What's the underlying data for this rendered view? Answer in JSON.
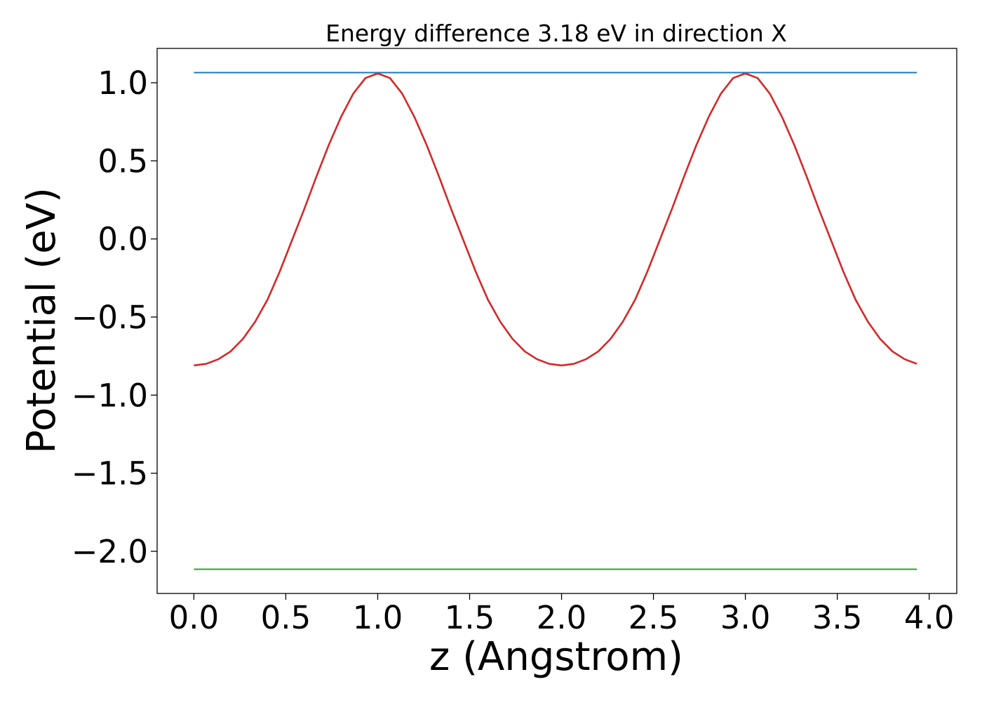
{
  "chart_data": {
    "type": "line",
    "title": "Energy difference 3.18 eV in direction X",
    "xlabel": "z (Angstrom)",
    "ylabel": "Potential (eV)",
    "xlim": [
      -0.2,
      4.15
    ],
    "ylim": [
      -2.27,
      1.22
    ],
    "x_ticks": [
      0.0,
      0.5,
      1.0,
      1.5,
      2.0,
      2.5,
      3.0,
      3.5,
      4.0
    ],
    "x_tick_labels": [
      "0.0",
      "0.5",
      "1.0",
      "1.5",
      "2.0",
      "2.5",
      "3.0",
      "3.5",
      "4.0"
    ],
    "y_ticks": [
      1.0,
      0.5,
      0.0,
      -0.5,
      -1.0,
      -1.5,
      -2.0
    ],
    "y_tick_labels": [
      "1.0",
      "0.5",
      "0.0",
      "−0.5",
      "−1.0",
      "−1.5",
      "−2.0"
    ],
    "grid": false,
    "series": [
      {
        "color": "#d62728",
        "x": [
          0.0,
          0.0667,
          0.1333,
          0.2,
          0.2667,
          0.3333,
          0.4,
          0.4667,
          0.5333,
          0.6,
          0.6667,
          0.7333,
          0.8,
          0.8667,
          0.9333,
          1.0,
          1.0667,
          1.1333,
          1.2,
          1.2667,
          1.3333,
          1.4,
          1.4667,
          1.5333,
          1.6,
          1.6667,
          1.7333,
          1.8,
          1.8667,
          1.9333,
          2.0,
          2.0667,
          2.1333,
          2.2,
          2.2667,
          2.3333,
          2.4,
          2.4667,
          2.5333,
          2.6,
          2.6667,
          2.7333,
          2.8,
          2.8667,
          2.9333,
          3.0,
          3.0667,
          3.1333,
          3.2,
          3.2667,
          3.3333,
          3.4,
          3.4667,
          3.5333,
          3.6,
          3.6667,
          3.7333,
          3.8,
          3.8667,
          3.9333
        ],
        "y": [
          -0.81,
          -0.8,
          -0.77,
          -0.72,
          -0.64,
          -0.53,
          -0.39,
          -0.21,
          -0.01,
          0.19,
          0.4,
          0.6,
          0.78,
          0.93,
          1.03,
          1.06,
          1.03,
          0.93,
          0.78,
          0.6,
          0.4,
          0.19,
          -0.01,
          -0.21,
          -0.39,
          -0.53,
          -0.64,
          -0.72,
          -0.77,
          -0.8,
          -0.81,
          -0.8,
          -0.77,
          -0.72,
          -0.64,
          -0.53,
          -0.39,
          -0.21,
          -0.01,
          0.19,
          0.4,
          0.6,
          0.78,
          0.93,
          1.03,
          1.06,
          1.03,
          0.93,
          0.78,
          0.6,
          0.4,
          0.19,
          -0.01,
          -0.21,
          -0.39,
          -0.53,
          -0.64,
          -0.72,
          -0.77,
          -0.8
        ]
      },
      {
        "color": "#1f77b4",
        "x": [
          0.0,
          3.9333
        ],
        "y": [
          1.065,
          1.065
        ]
      },
      {
        "color": "#2ca02c",
        "x": [
          0.0,
          3.9333
        ],
        "y": [
          -2.115,
          -2.115
        ]
      }
    ]
  }
}
